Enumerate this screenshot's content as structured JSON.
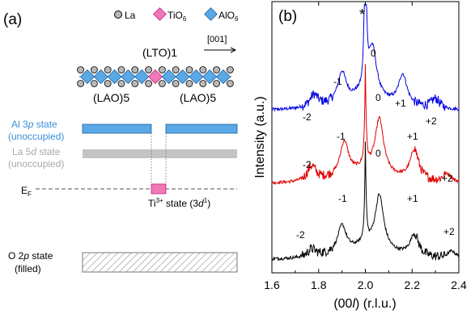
{
  "panel_a": {
    "label": "(a)",
    "legend": {
      "la": "La",
      "tio6": "TiO",
      "tio6_sub": "6",
      "alo6": "AlO",
      "alo6_sub": "6"
    },
    "lto_label": "(LTO)1",
    "direction": "[001]",
    "lao_left": "(LAO)5",
    "lao_right": "(LAO)5",
    "al3p_line1_pre": "Al 3",
    "al3p_line1_it": "p",
    "al3p_line1_post": " state",
    "al3p_line2": "(unoccupied)",
    "la5d_line1_pre": "La 5",
    "la5d_line1_it": "d",
    "la5d_line1_post": " state",
    "la5d_line2": "(unoccupied)",
    "ef_main": "E",
    "ef_sub": "F",
    "ti_pre": "Ti",
    "ti_sup": "3+",
    "ti_mid": " state (3",
    "ti_it": "d",
    "ti_sup2": "1",
    "ti_post": ")",
    "o2p_line1_pre": "O 2",
    "o2p_line1_it": "p",
    "o2p_line1_post": " state",
    "o2p_line2": "(filled)",
    "colors": {
      "al": "#5aa8e6",
      "la": "#bfbfbf",
      "ti": "#f07ab6",
      "o_hatch": "#9a9a9a"
    }
  },
  "panel_b": {
    "label": "(b)",
    "star": "*",
    "ylabel": "Intensity (a.u.)",
    "xlabel_pre": "(00",
    "xlabel_it": "l",
    "xlabel_post": ") (r.l.u.)",
    "xticks": [
      "1.6",
      "1.8",
      "2.0",
      "2.2",
      "2.4"
    ],
    "peak_labels": {
      "blue": [
        "-2",
        "-1",
        "0",
        "+1",
        "+2"
      ],
      "red": [
        "-2",
        "-1",
        "0",
        "+1",
        "+2"
      ],
      "black": [
        "-2",
        "-1",
        "0",
        "+1",
        "+2"
      ]
    }
  },
  "chart_data": {
    "type": "line",
    "xlabel": "(00l) (r.l.u.)",
    "ylabel": "Intensity (a.u.)",
    "xlim": [
      1.6,
      2.4
    ],
    "xticks": [
      1.6,
      1.8,
      2.0,
      2.2,
      2.4
    ],
    "yscale": "log",
    "substrate_peak_x": 2.0,
    "series": [
      {
        "color": "#0000e0",
        "offset": 0.6,
        "peaks": [
          [
            1.78,
            0.1
          ],
          [
            1.9,
            0.25
          ],
          [
            2.03,
            0.4
          ],
          [
            2.16,
            0.25
          ],
          [
            2.3,
            0.08
          ]
        ]
      },
      {
        "color": "#e00000",
        "offset": 0.33,
        "peaks": [
          [
            1.77,
            0.12
          ],
          [
            1.91,
            0.28
          ],
          [
            2.06,
            0.45
          ],
          [
            2.21,
            0.25
          ],
          [
            2.35,
            0.07
          ]
        ]
      },
      {
        "color": "#000000",
        "offset": 0.05,
        "peaks": [
          [
            1.77,
            0.06
          ],
          [
            1.9,
            0.22
          ],
          [
            2.06,
            0.45
          ],
          [
            2.21,
            0.18
          ],
          [
            2.37,
            0.06
          ]
        ]
      }
    ]
  }
}
